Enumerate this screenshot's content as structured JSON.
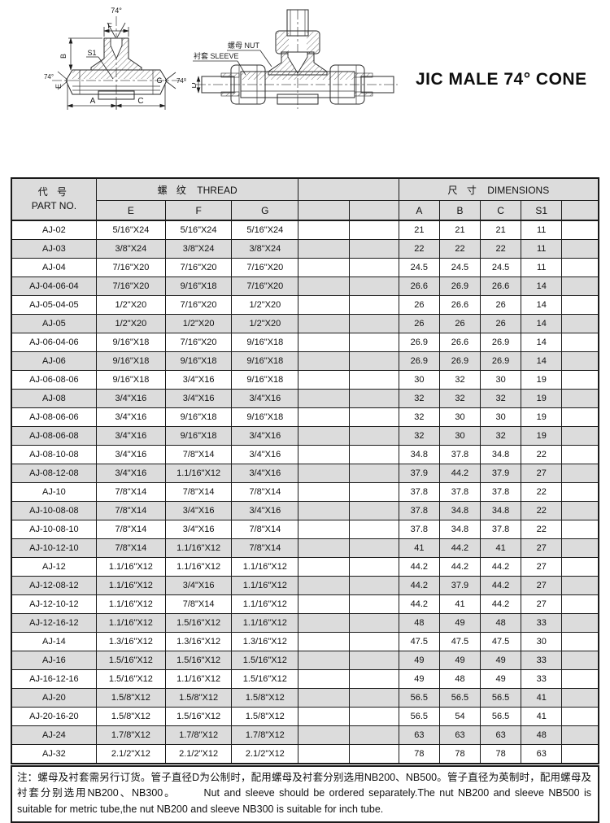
{
  "page": {
    "title": "JIC MALE 74° CONE"
  },
  "colors": {
    "alt_row_bg": "#dcdcdc",
    "header_bg": "#dcdcdc",
    "border": "#1a1a1a"
  },
  "drawing1": {
    "labels": {
      "angle_top": "74°",
      "f": "F",
      "b": "B",
      "s1": "S1",
      "e": "E",
      "angle_left": "74°",
      "g": "G",
      "angle_right": "74°",
      "a": "A",
      "c": "C"
    }
  },
  "drawing2": {
    "labels": {
      "nut": "螺母 NUT",
      "sleeve": "衬套 SLEEVE",
      "d": "D"
    }
  },
  "table": {
    "header": {
      "part_cn": "代 号",
      "part_en": "PART NO.",
      "thread_cn": "螺 纹",
      "thread_en": "THREAD",
      "dims_cn": "尺 寸",
      "dims_en": "DIMENSIONS",
      "col_e": "E",
      "col_f": "F",
      "col_g": "G",
      "col_a": "A",
      "col_b": "B",
      "col_c": "C",
      "col_s1": "S1"
    },
    "rows": [
      [
        "AJ-02",
        "5/16\"X24",
        "5/16\"X24",
        "5/16\"X24",
        "21",
        "21",
        "21",
        "11"
      ],
      [
        "AJ-03",
        "3/8\"X24",
        "3/8\"X24",
        "3/8\"X24",
        "22",
        "22",
        "22",
        "11"
      ],
      [
        "AJ-04",
        "7/16\"X20",
        "7/16\"X20",
        "7/16\"X20",
        "24.5",
        "24.5",
        "24.5",
        "11"
      ],
      [
        "AJ-04-06-04",
        "7/16\"X20",
        "9/16\"X18",
        "7/16\"X20",
        "26.6",
        "26.9",
        "26.6",
        "14"
      ],
      [
        "AJ-05-04-05",
        "1/2\"X20",
        "7/16\"X20",
        "1/2\"X20",
        "26",
        "26.6",
        "26",
        "14"
      ],
      [
        "AJ-05",
        "1/2\"X20",
        "1/2\"X20",
        "1/2\"X20",
        "26",
        "26",
        "26",
        "14"
      ],
      [
        "AJ-06-04-06",
        "9/16\"X18",
        "7/16\"X20",
        "9/16\"X18",
        "26.9",
        "26.6",
        "26.9",
        "14"
      ],
      [
        "AJ-06",
        "9/16\"X18",
        "9/16\"X18",
        "9/16\"X18",
        "26.9",
        "26.9",
        "26.9",
        "14"
      ],
      [
        "AJ-06-08-06",
        "9/16\"X18",
        "3/4\"X16",
        "9/16\"X18",
        "30",
        "32",
        "30",
        "19"
      ],
      [
        "AJ-08",
        "3/4\"X16",
        "3/4\"X16",
        "3/4\"X16",
        "32",
        "32",
        "32",
        "19"
      ],
      [
        "AJ-08-06-06",
        "3/4\"X16",
        "9/16\"X18",
        "9/16\"X18",
        "32",
        "30",
        "30",
        "19"
      ],
      [
        "AJ-08-06-08",
        "3/4\"X16",
        "9/16\"X18",
        "3/4\"X16",
        "32",
        "30",
        "32",
        "19"
      ],
      [
        "AJ-08-10-08",
        "3/4\"X16",
        "7/8\"X14",
        "3/4\"X16",
        "34.8",
        "37.8",
        "34.8",
        "22"
      ],
      [
        "AJ-08-12-08",
        "3/4\"X16",
        "1.1/16\"X12",
        "3/4\"X16",
        "37.9",
        "44.2",
        "37.9",
        "27"
      ],
      [
        "AJ-10",
        "7/8\"X14",
        "7/8\"X14",
        "7/8\"X14",
        "37.8",
        "37.8",
        "37.8",
        "22"
      ],
      [
        "AJ-10-08-08",
        "7/8\"X14",
        "3/4\"X16",
        "3/4\"X16",
        "37.8",
        "34.8",
        "34.8",
        "22"
      ],
      [
        "AJ-10-08-10",
        "7/8\"X14",
        "3/4\"X16",
        "7/8\"X14",
        "37.8",
        "34.8",
        "37.8",
        "22"
      ],
      [
        "AJ-10-12-10",
        "7/8\"X14",
        "1.1/16\"X12",
        "7/8\"X14",
        "41",
        "44.2",
        "41",
        "27"
      ],
      [
        "AJ-12",
        "1.1/16\"X12",
        "1.1/16\"X12",
        "1.1/16\"X12",
        "44.2",
        "44.2",
        "44.2",
        "27"
      ],
      [
        "AJ-12-08-12",
        "1.1/16\"X12",
        "3/4\"X16",
        "1.1/16\"X12",
        "44.2",
        "37.9",
        "44.2",
        "27"
      ],
      [
        "AJ-12-10-12",
        "1.1/16\"X12",
        "7/8\"X14",
        "1.1/16\"X12",
        "44.2",
        "41",
        "44.2",
        "27"
      ],
      [
        "AJ-12-16-12",
        "1.1/16\"X12",
        "1.5/16\"X12",
        "1.1/16\"X12",
        "48",
        "49",
        "48",
        "33"
      ],
      [
        "AJ-14",
        "1.3/16\"X12",
        "1.3/16\"X12",
        "1.3/16\"X12",
        "47.5",
        "47.5",
        "47.5",
        "30"
      ],
      [
        "AJ-16",
        "1.5/16\"X12",
        "1.5/16\"X12",
        "1.5/16\"X12",
        "49",
        "49",
        "49",
        "33"
      ],
      [
        "AJ-16-12-16",
        "1.5/16\"X12",
        "1.1/16\"X12",
        "1.5/16\"X12",
        "49",
        "48",
        "49",
        "33"
      ],
      [
        "AJ-20",
        "1.5/8\"X12",
        "1.5/8\"X12",
        "1.5/8\"X12",
        "56.5",
        "56.5",
        "56.5",
        "41"
      ],
      [
        "AJ-20-16-20",
        "1.5/8\"X12",
        "1.5/16\"X12",
        "1.5/8\"X12",
        "56.5",
        "54",
        "56.5",
        "41"
      ],
      [
        "AJ-24",
        "1.7/8\"X12",
        "1.7/8\"X12",
        "1.7/8\"X12",
        "63",
        "63",
        "63",
        "48"
      ],
      [
        "AJ-32",
        "2.1/2\"X12",
        "2.1/2\"X12",
        "2.1/2\"X12",
        "78",
        "78",
        "78",
        "63"
      ]
    ]
  },
  "note": {
    "prefix": "注：",
    "cn": "螺母及衬套需另行订货。管子直径D为公制时，配用螺母及衬套分别选用NB200、NB500。管子直径为英制时，配用螺母及衬套分别选用NB200、NB300。",
    "en": "Nut and sleeve should be ordered separately.The nut NB200 and sleeve NB500 is suitable for metric tube,the nut NB200 and sleeve NB300 is suitable for inch tube."
  }
}
